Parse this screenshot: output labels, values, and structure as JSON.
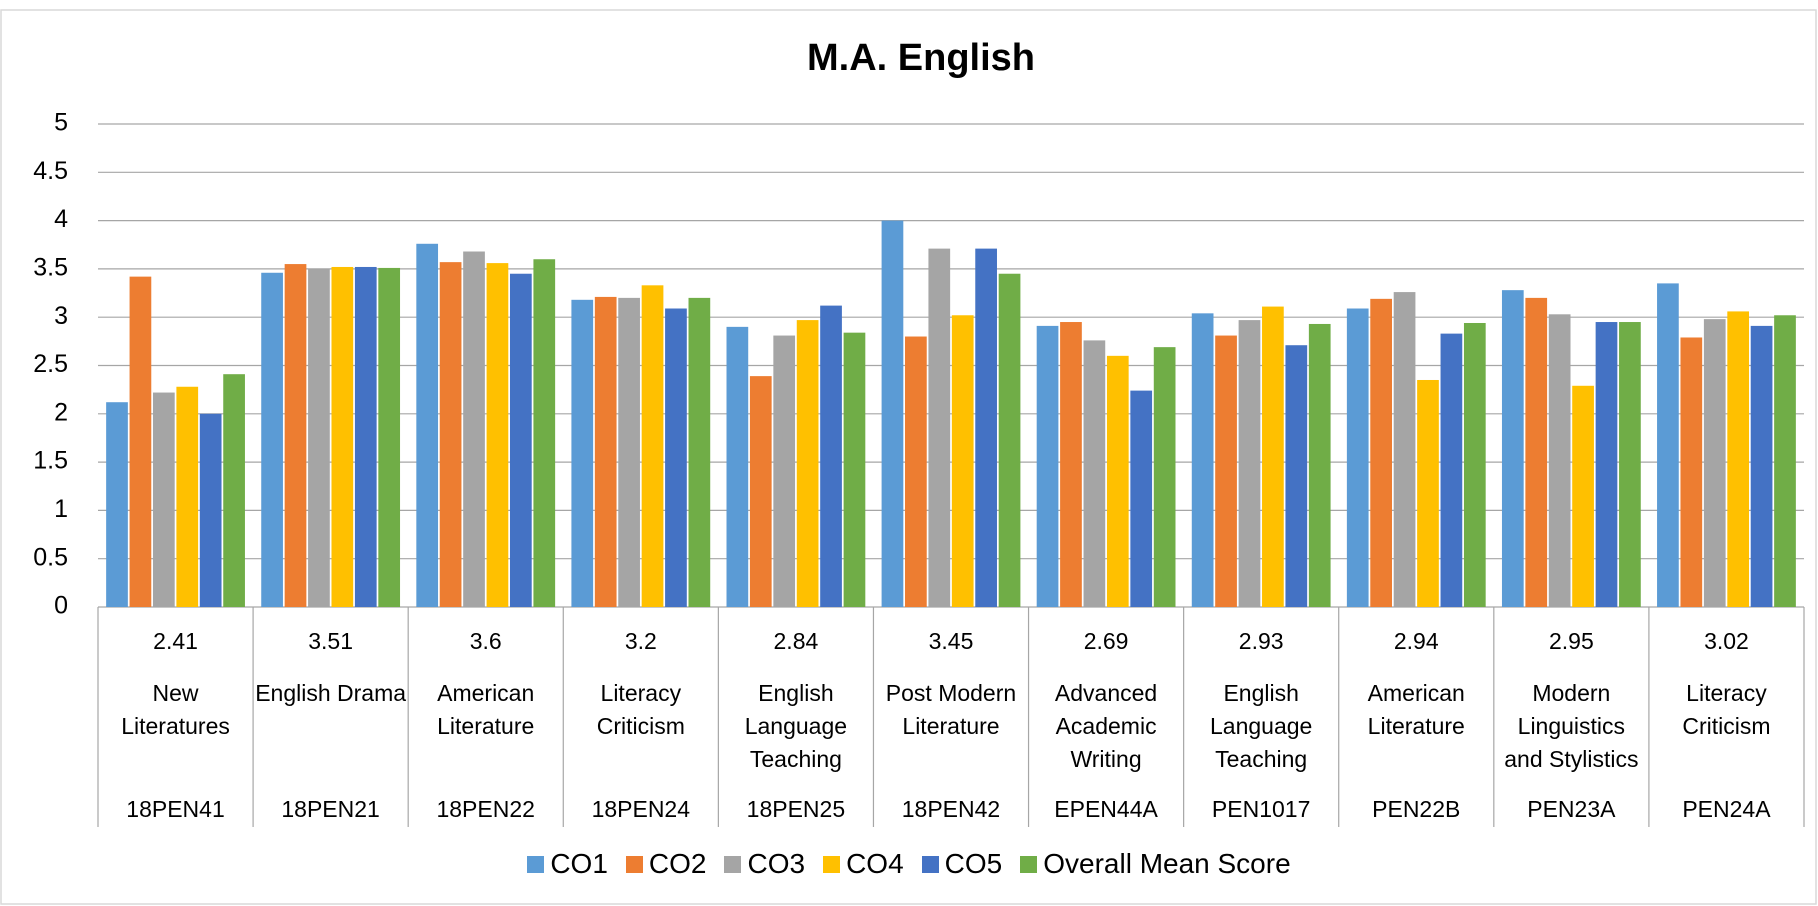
{
  "chart_data": {
    "type": "bar",
    "title": "M.A. English",
    "categories": [
      "New Literatures",
      "English Drama",
      "American Literature",
      "Literacy Criticism",
      "English Language Teaching",
      "Post Modern Literature",
      "Advanced Academic Writing",
      "English Language Teaching",
      "American Literature",
      "Modern Linguistics and Stylistics",
      "Literacy Criticism"
    ],
    "category_codes": [
      "18PEN41",
      "18PEN21",
      "18PEN22",
      "18PEN24",
      "18PEN25",
      "18PEN42",
      "EPEN44A",
      "PEN1017",
      "PEN22B",
      "PEN23A",
      "PEN24A"
    ],
    "series": [
      {
        "name": "CO1",
        "color": "#5b9bd5",
        "values": [
          2.12,
          3.46,
          3.76,
          3.18,
          2.9,
          4.0,
          2.91,
          3.04,
          3.09,
          3.28,
          3.35
        ]
      },
      {
        "name": "CO2",
        "color": "#ed7d31",
        "values": [
          3.42,
          3.55,
          3.57,
          3.21,
          2.39,
          2.8,
          2.95,
          2.81,
          3.19,
          3.2,
          2.79
        ]
      },
      {
        "name": "CO3",
        "color": "#a5a5a5",
        "values": [
          2.22,
          3.5,
          3.68,
          3.2,
          2.81,
          3.71,
          2.76,
          2.97,
          3.26,
          3.03,
          2.98
        ]
      },
      {
        "name": "CO4",
        "color": "#ffc000",
        "values": [
          2.28,
          3.52,
          3.56,
          3.33,
          2.97,
          3.02,
          2.6,
          3.11,
          2.35,
          2.29,
          3.06
        ]
      },
      {
        "name": "CO5",
        "color": "#4472c4",
        "values": [
          2.0,
          3.52,
          3.45,
          3.09,
          3.12,
          3.71,
          2.24,
          2.71,
          2.83,
          2.95,
          2.91
        ]
      },
      {
        "name": "Overall Mean Score",
        "color": "#70ad47",
        "values": [
          2.41,
          3.51,
          3.6,
          3.2,
          2.84,
          3.45,
          2.69,
          2.93,
          2.94,
          2.95,
          3.02
        ]
      }
    ],
    "mean_row_series": 5,
    "ylim": [
      0,
      5
    ],
    "yticks": [
      0,
      0.5,
      1,
      1.5,
      2,
      2.5,
      3,
      3.5,
      4,
      4.5,
      5
    ],
    "grid": true,
    "legend": "bottom"
  }
}
